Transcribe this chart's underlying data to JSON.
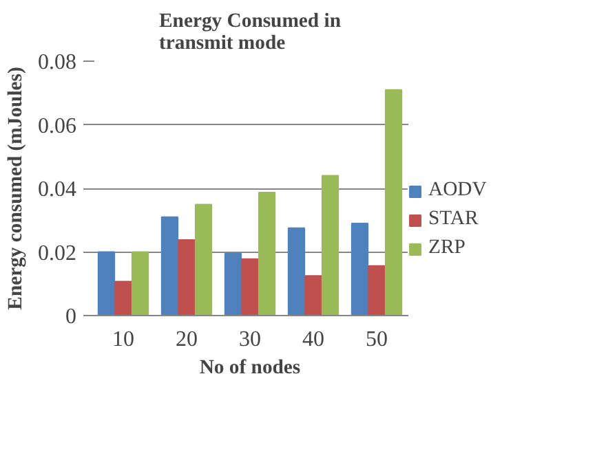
{
  "chart_data": {
    "type": "bar",
    "title": "Energy Consumed in transmit mode",
    "xlabel": "No of nodes",
    "ylabel": "Energy consumed (mJoules)",
    "categories": [
      "10",
      "20",
      "30",
      "40",
      "50"
    ],
    "series": [
      {
        "name": "AODV",
        "color": "#4f81bd",
        "values": [
          0.02,
          0.031,
          0.0195,
          0.0275,
          0.029
        ]
      },
      {
        "name": "STAR",
        "color": "#c0504d",
        "values": [
          0.0107,
          0.0238,
          0.0178,
          0.0125,
          0.0156
        ]
      },
      {
        "name": "ZRP",
        "color": "#9bbb59",
        "values": [
          0.02,
          0.0349,
          0.0387,
          0.044,
          0.071
        ]
      }
    ],
    "ylim": [
      0,
      0.08
    ],
    "yticks": [
      0,
      0.02,
      0.04,
      0.06,
      0.08
    ],
    "grid": "y",
    "legend": "right"
  }
}
